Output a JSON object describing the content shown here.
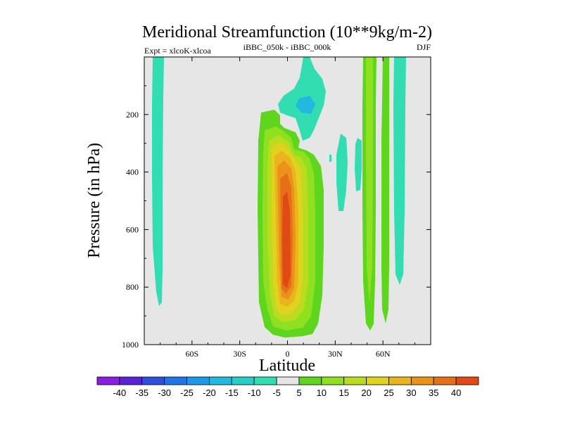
{
  "chart_data": {
    "type": "heatmap",
    "title": "Meridional Streamfunction (10**9kg/m-2)",
    "experiment_label": "Expt = xlcoK-xlcoa",
    "center_label": "iBBC_050k - iBBC_000k",
    "season_label": "DJF",
    "xlabel": "Latitude",
    "ylabel": "Pressure (in hPa)",
    "xlim": [
      -90,
      90
    ],
    "ylim": [
      1000,
      0
    ],
    "x_ticks": [
      {
        "value": -60,
        "label": "60S"
      },
      {
        "value": -30,
        "label": "30S"
      },
      {
        "value": 0,
        "label": "0"
      },
      {
        "value": 30,
        "label": "30N"
      },
      {
        "value": 60,
        "label": "60N"
      }
    ],
    "y_ticks": [
      {
        "value": 200,
        "label": "200"
      },
      {
        "value": 400,
        "label": "400"
      },
      {
        "value": 600,
        "label": "600"
      },
      {
        "value": 800,
        "label": "800"
      },
      {
        "value": 1000,
        "label": "1000"
      }
    ],
    "colorbar": {
      "levels": [
        -40,
        -35,
        -30,
        -25,
        -20,
        -15,
        -10,
        -5,
        5,
        10,
        15,
        20,
        25,
        30,
        35,
        40
      ],
      "colors": [
        "#8c1cde",
        "#5a24d6",
        "#2f4fdc",
        "#1f74e4",
        "#1d99e8",
        "#22b8e0",
        "#27cdc6",
        "#32ddb2",
        "#e6e6e6",
        "#5fd61e",
        "#8ee020",
        "#b9dc1e",
        "#e0d21e",
        "#ecb41c",
        "#ea921a",
        "#e67018",
        "#e04a14"
      ]
    },
    "features": [
      {
        "name": "positive-cell-equatorial",
        "lat_range": [
          -12,
          18
        ],
        "p_range": [
          160,
          980
        ],
        "peak_value": 40,
        "peak_location": {
          "lat": 2,
          "p": 600
        }
      },
      {
        "name": "negative-column-south",
        "lat_range": [
          -85,
          -78
        ],
        "p_range": [
          0,
          870
        ],
        "value": -5
      },
      {
        "name": "negative-patch-upper",
        "lat_range": [
          -5,
          20
        ],
        "p_range": [
          0,
          280
        ],
        "peak_value": -15
      },
      {
        "name": "negative-columns-subtropics",
        "lat_range": [
          30,
          50
        ],
        "p_range": [
          240,
          490
        ],
        "value": -5
      },
      {
        "name": "positive-column-north-a",
        "lat_range": [
          48,
          56
        ],
        "p_range": [
          0,
          960
        ],
        "value": 10
      },
      {
        "name": "positive-column-north-b",
        "lat_range": [
          58,
          62
        ],
        "p_range": [
          0,
          940
        ],
        "value": 5
      },
      {
        "name": "negative-column-north",
        "lat_range": [
          66,
          75
        ],
        "p_range": [
          0,
          800
        ],
        "value": -5
      }
    ]
  }
}
